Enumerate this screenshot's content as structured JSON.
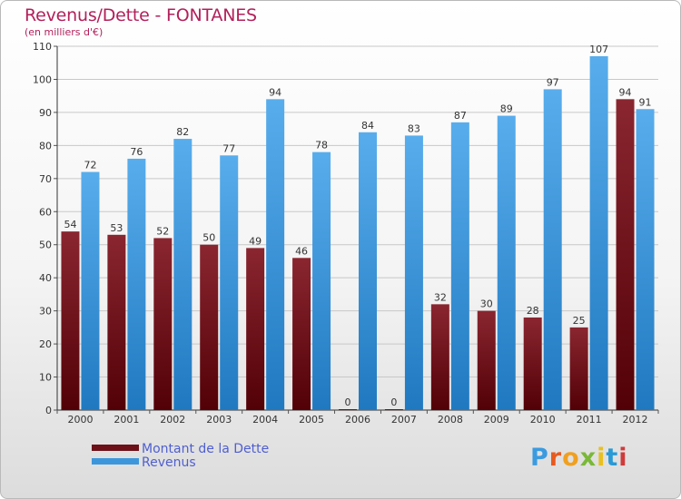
{
  "header": {
    "title": "Revenus/Dette - FONTANES",
    "subtitle": "(en milliers d'€)"
  },
  "logo": {
    "text": "Proxiti",
    "letter_colors": [
      "#3a9be0",
      "#e85a1e",
      "#f0a020",
      "#7ab838",
      "#e8c020",
      "#2a9ad6",
      "#d03a3a"
    ]
  },
  "colors": {
    "dette": "#6e1018",
    "revenus": "#3c96dc",
    "title": "#b3205a",
    "legend_text": "#4f5fd0"
  },
  "chart_data": {
    "type": "bar",
    "title": "Revenus/Dette - FONTANES",
    "subtitle": "(en milliers d'€)",
    "categories": [
      "2000",
      "2001",
      "2002",
      "2003",
      "2004",
      "2005",
      "2006",
      "2007",
      "2008",
      "2009",
      "2010",
      "2011",
      "2012"
    ],
    "series": [
      {
        "name": "Montant de la Dette",
        "values": [
          54,
          53,
          52,
          50,
          49,
          46,
          0,
          0,
          32,
          30,
          28,
          25,
          94
        ]
      },
      {
        "name": "Revenus",
        "values": [
          72,
          76,
          82,
          77,
          94,
          78,
          84,
          83,
          87,
          89,
          97,
          107,
          91
        ]
      }
    ],
    "yticks": [
      0,
      10,
      20,
      30,
      40,
      50,
      60,
      70,
      80,
      90,
      100,
      110
    ],
    "ylim": [
      0,
      110
    ],
    "grid": true,
    "legend_position": "bottom-left"
  }
}
